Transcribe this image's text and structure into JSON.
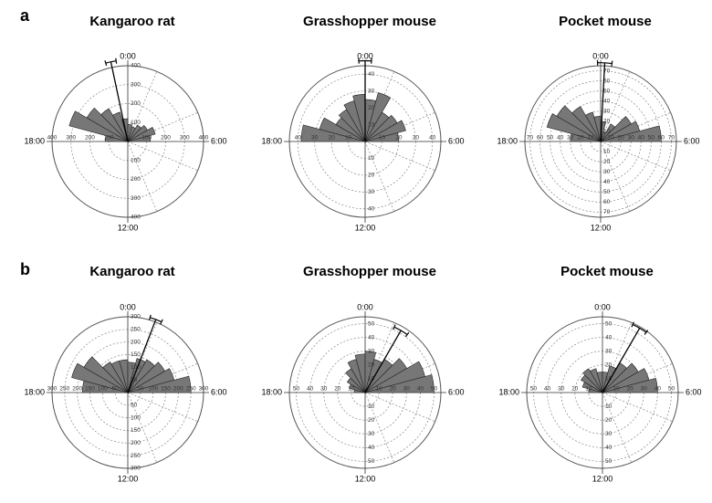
{
  "chart_data": [
    {
      "type": "rose",
      "panel": "a",
      "title": "Kangaroo rat",
      "time_labels": [
        "0:00",
        "6:00",
        "12:00",
        "18:00"
      ],
      "x": [
        18,
        19,
        20,
        21,
        22,
        23,
        0,
        1,
        2,
        3,
        4,
        5
      ],
      "values": [
        120,
        320,
        250,
        200,
        160,
        120,
        90,
        80,
        100,
        120,
        150,
        120
      ],
      "rlim": [
        0,
        400
      ],
      "rticks": [
        100,
        200,
        300,
        400
      ],
      "mean_angle": 23.2,
      "mean_length": 430,
      "mean_ci": 0.25,
      "color": "#777777"
    },
    {
      "type": "rose",
      "title": "Grasshopper mouse",
      "time_labels": [
        "0:00",
        "6:00",
        "12:00",
        "18:00"
      ],
      "x": [
        18,
        19,
        20,
        21,
        22,
        23,
        0,
        1,
        2,
        3,
        4,
        5
      ],
      "values": [
        38,
        28,
        20,
        22,
        25,
        28,
        25,
        30,
        20,
        22,
        25,
        20
      ],
      "rlim": [
        0,
        45
      ],
      "rticks": [
        10,
        20,
        30,
        40
      ],
      "mean_angle": 0.0,
      "mean_length": 48,
      "mean_ci": 0.3,
      "color": "#777777"
    },
    {
      "type": "rose",
      "title": "Pocket mouse",
      "time_labels": [
        "0:00",
        "6:00",
        "12:00",
        "18:00"
      ],
      "x": [
        18,
        19,
        20,
        21,
        22,
        23,
        0,
        1,
        2,
        3,
        4,
        5
      ],
      "values": [
        30,
        55,
        50,
        40,
        30,
        25,
        20,
        10,
        20,
        35,
        40,
        60
      ],
      "rlim": [
        0,
        75
      ],
      "rticks": [
        10,
        20,
        30,
        40,
        50,
        60,
        70
      ],
      "mean_angle": 0.2,
      "mean_length": 78,
      "mean_ci": 0.35,
      "color": "#777777"
    },
    {
      "type": "rose",
      "panel": "b",
      "title": "Kangaroo rat",
      "time_labels": [
        "0:00",
        "6:00",
        "12:00",
        "18:00"
      ],
      "x": [
        18,
        19,
        20,
        21,
        22,
        23,
        0,
        1,
        2,
        3,
        4,
        5
      ],
      "values": [
        180,
        230,
        200,
        140,
        130,
        130,
        120,
        140,
        150,
        170,
        190,
        250
      ],
      "rlim": [
        0,
        300
      ],
      "rticks": [
        50,
        100,
        150,
        200,
        250,
        300
      ],
      "mean_angle": 1.4,
      "mean_length": 310,
      "mean_ci": 0.3,
      "color": "#777777"
    },
    {
      "type": "rose",
      "title": "Grasshopper mouse",
      "time_labels": [
        "0:00",
        "6:00",
        "12:00",
        "18:00"
      ],
      "x": [
        18,
        19,
        20,
        21,
        22,
        23,
        0,
        1,
        2,
        3,
        4,
        5
      ],
      "values": [
        8,
        12,
        15,
        20,
        25,
        28,
        30,
        25,
        28,
        35,
        45,
        50
      ],
      "rlim": [
        0,
        55
      ],
      "rticks": [
        10,
        20,
        30,
        40,
        50
      ],
      "mean_angle": 2.0,
      "mean_length": 52,
      "mean_ci": 0.4,
      "color": "#777777"
    },
    {
      "type": "rose",
      "title": "Pocket mouse",
      "time_labels": [
        "0:00",
        "6:00",
        "12:00",
        "18:00"
      ],
      "x": [
        18,
        19,
        20,
        21,
        22,
        23,
        0,
        1,
        2,
        3,
        4,
        5
      ],
      "values": [
        10,
        15,
        18,
        20,
        18,
        15,
        15,
        20,
        25,
        30,
        35,
        40
      ],
      "rlim": [
        0,
        55
      ],
      "rticks": [
        10,
        20,
        30,
        40,
        50
      ],
      "mean_angle": 2.0,
      "mean_length": 54,
      "mean_ci": 0.4,
      "color": "#777777"
    }
  ]
}
